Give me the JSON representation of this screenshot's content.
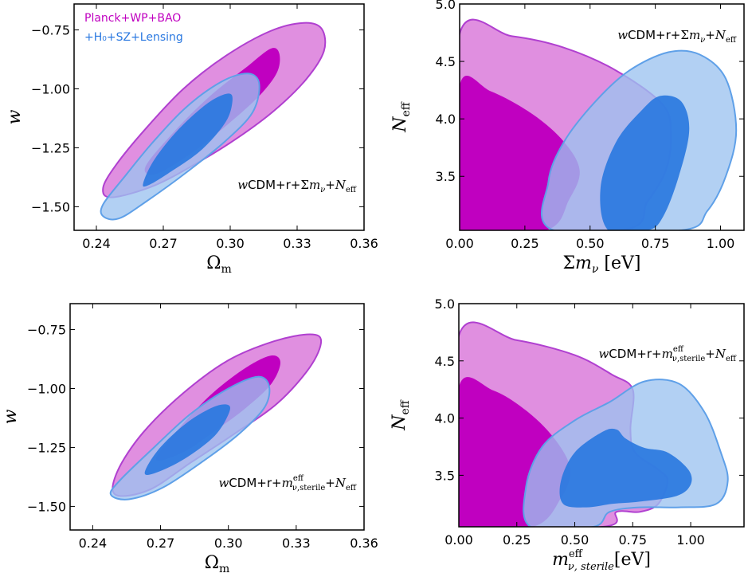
{
  "colors": {
    "planck_outer": "#e08fe0",
    "planck_inner": "#c000c0",
    "planck_edge": "#b040d0",
    "lens_outer": "#9cc3f0",
    "lens_inner": "#2a78e0",
    "lens_edge": "#5fa0e8"
  },
  "legend": {
    "planck": "Planck+WP+BAO",
    "lensing": "+H₀+SZ+Lensing"
  },
  "chart_data": [
    {
      "id": "top-left",
      "type": "contour",
      "xlabel": "Ωm",
      "ylabel": "w",
      "xlim": [
        0.23,
        0.36
      ],
      "ylim": [
        -1.6,
        -0.64
      ],
      "xticks": [
        "0.24",
        "0.27",
        "0.30",
        "0.33",
        "0.36"
      ],
      "yticks": [
        "−0.75",
        "−1.00",
        "−1.25",
        "−1.50"
      ],
      "annotation": "wCDM+r+Σmν+Neff",
      "series": [
        {
          "name": "Planck+WP+BAO",
          "level": "95%",
          "points": [
            [
              0.247,
              -1.46
            ],
            [
              0.243,
              -1.42
            ],
            [
              0.249,
              -1.32
            ],
            [
              0.262,
              -1.17
            ],
            [
              0.279,
              -1.0
            ],
            [
              0.298,
              -0.86
            ],
            [
              0.318,
              -0.755
            ],
            [
              0.333,
              -0.72
            ],
            [
              0.341,
              -0.745
            ],
            [
              0.342,
              -0.84
            ],
            [
              0.334,
              -0.96
            ],
            [
              0.32,
              -1.09
            ],
            [
              0.303,
              -1.21
            ],
            [
              0.286,
              -1.31
            ],
            [
              0.266,
              -1.41
            ]
          ]
        },
        {
          "name": "Planck+WP+BAO",
          "level": "68%",
          "points": [
            [
              0.262,
              -1.33
            ],
            [
              0.275,
              -1.18
            ],
            [
              0.291,
              -1.03
            ],
            [
              0.307,
              -0.91
            ],
            [
              0.318,
              -0.83
            ],
            [
              0.322,
              -0.85
            ],
            [
              0.321,
              -0.93
            ],
            [
              0.313,
              -1.03
            ],
            [
              0.299,
              -1.15
            ],
            [
              0.283,
              -1.27
            ],
            [
              0.267,
              -1.36
            ]
          ]
        },
        {
          "name": "+H₀+SZ+Lensing",
          "level": "95%",
          "points": [
            [
              0.243,
              -1.54
            ],
            [
              0.243,
              -1.49
            ],
            [
              0.252,
              -1.38
            ],
            [
              0.265,
              -1.23
            ],
            [
              0.28,
              -1.08
            ],
            [
              0.296,
              -0.97
            ],
            [
              0.308,
              -0.935
            ],
            [
              0.313,
              -0.98
            ],
            [
              0.31,
              -1.1
            ],
            [
              0.298,
              -1.22
            ],
            [
              0.281,
              -1.35
            ],
            [
              0.262,
              -1.48
            ],
            [
              0.25,
              -1.55
            ]
          ]
        },
        {
          "name": "+H₀+SZ+Lensing",
          "level": "68%",
          "points": [
            [
              0.261,
              -1.4
            ],
            [
              0.266,
              -1.3
            ],
            [
              0.277,
              -1.17
            ],
            [
              0.29,
              -1.06
            ],
            [
              0.299,
              -1.02
            ],
            [
              0.301,
              -1.05
            ],
            [
              0.298,
              -1.14
            ],
            [
              0.287,
              -1.26
            ],
            [
              0.272,
              -1.36
            ],
            [
              0.263,
              -1.41
            ]
          ]
        }
      ]
    },
    {
      "id": "top-right",
      "type": "contour",
      "xlabel": "Σmν [eV]",
      "ylabel": "Neff",
      "xlim": [
        0,
        1.09
      ],
      "ylim": [
        3.03,
        5.0
      ],
      "xticks": [
        "0.00",
        "0.25",
        "0.50",
        "0.75",
        "1.00"
      ],
      "yticks": [
        "3.5",
        "4.0",
        "4.5",
        "5.0"
      ],
      "annotation": "wCDM+r+Σmν+Neff",
      "series": [
        {
          "name": "Planck+WP+BAO",
          "level": "95%",
          "points": [
            [
              0.0,
              3.03
            ],
            [
              0.0,
              4.74
            ],
            [
              0.2,
              4.72
            ],
            [
              0.4,
              4.62
            ],
            [
              0.6,
              4.42
            ],
            [
              0.78,
              4.12
            ],
            [
              0.81,
              3.85
            ],
            [
              0.79,
              3.55
            ],
            [
              0.72,
              3.28
            ],
            [
              0.62,
              3.03
            ]
          ]
        },
        {
          "name": "Planck+WP+BAO",
          "level": "68%",
          "points": [
            [
              0.0,
              3.03
            ],
            [
              0.0,
              4.29
            ],
            [
              0.12,
              4.24
            ],
            [
              0.28,
              4.04
            ],
            [
              0.4,
              3.8
            ],
            [
              0.46,
              3.55
            ],
            [
              0.42,
              3.3
            ],
            [
              0.33,
              3.03
            ]
          ]
        },
        {
          "name": "+H₀+SZ+Lensing",
          "level": "95%",
          "points": [
            [
              0.36,
              3.03
            ],
            [
              0.34,
              3.45
            ],
            [
              0.4,
              3.8
            ],
            [
              0.52,
              4.15
            ],
            [
              0.65,
              4.42
            ],
            [
              0.8,
              4.58
            ],
            [
              0.92,
              4.56
            ],
            [
              1.02,
              4.35
            ],
            [
              1.06,
              3.9
            ],
            [
              1.02,
              3.5
            ],
            [
              0.95,
              3.2
            ],
            [
              0.85,
              3.03
            ]
          ]
        },
        {
          "name": "+H₀+SZ+Lensing",
          "level": "68%",
          "points": [
            [
              0.57,
              3.03
            ],
            [
              0.54,
              3.4
            ],
            [
              0.6,
              3.8
            ],
            [
              0.7,
              4.08
            ],
            [
              0.77,
              4.2
            ],
            [
              0.85,
              4.15
            ],
            [
              0.88,
              3.9
            ],
            [
              0.84,
              3.5
            ],
            [
              0.78,
              3.15
            ],
            [
              0.72,
              3.03
            ]
          ]
        }
      ]
    },
    {
      "id": "bottom-left",
      "type": "contour",
      "xlabel": "Ωm",
      "ylabel": "w",
      "xlim": [
        0.23,
        0.36
      ],
      "ylim": [
        -1.6,
        -0.64
      ],
      "xticks": [
        "0.24",
        "0.27",
        "0.30",
        "0.33",
        "0.36"
      ],
      "yticks": [
        "−0.75",
        "−1.00",
        "−1.25",
        "−1.50"
      ],
      "annotation": "wCDM+r+mν,sterileᵉᶠᶠ+Neff",
      "series": [
        {
          "name": "Planck+WP+BAO",
          "level": "95%",
          "points": [
            [
              0.25,
              -1.45
            ],
            [
              0.251,
              -1.35
            ],
            [
              0.262,
              -1.19
            ],
            [
              0.28,
              -1.02
            ],
            [
              0.3,
              -0.88
            ],
            [
              0.32,
              -0.8
            ],
            [
              0.336,
              -0.77
            ],
            [
              0.341,
              -0.8
            ],
            [
              0.336,
              -0.91
            ],
            [
              0.322,
              -1.06
            ],
            [
              0.303,
              -1.19
            ],
            [
              0.284,
              -1.31
            ],
            [
              0.265,
              -1.43
            ]
          ]
        },
        {
          "name": "Planck+WP+BAO",
          "level": "68%",
          "points": [
            [
              0.268,
              -1.3
            ],
            [
              0.279,
              -1.16
            ],
            [
              0.293,
              -1.02
            ],
            [
              0.308,
              -0.91
            ],
            [
              0.319,
              -0.86
            ],
            [
              0.323,
              -0.89
            ],
            [
              0.319,
              -0.98
            ],
            [
              0.308,
              -1.08
            ],
            [
              0.294,
              -1.18
            ],
            [
              0.28,
              -1.27
            ]
          ]
        },
        {
          "name": "+H₀+SZ+Lensing",
          "level": "95%",
          "points": [
            [
              0.248,
              -1.45
            ],
            [
              0.252,
              -1.39
            ],
            [
              0.266,
              -1.26
            ],
            [
              0.283,
              -1.11
            ],
            [
              0.3,
              -1.0
            ],
            [
              0.313,
              -0.95
            ],
            [
              0.318,
              -0.99
            ],
            [
              0.316,
              -1.08
            ],
            [
              0.305,
              -1.19
            ],
            [
              0.29,
              -1.3
            ],
            [
              0.271,
              -1.42
            ],
            [
              0.256,
              -1.47
            ]
          ]
        },
        {
          "name": "+H₀+SZ+Lensing",
          "level": "68%",
          "points": [
            [
              0.263,
              -1.36
            ],
            [
              0.269,
              -1.26
            ],
            [
              0.281,
              -1.15
            ],
            [
              0.293,
              -1.08
            ],
            [
              0.3,
              -1.07
            ],
            [
              0.3,
              -1.11
            ],
            [
              0.294,
              -1.2
            ],
            [
              0.282,
              -1.29
            ],
            [
              0.27,
              -1.35
            ]
          ]
        }
      ]
    },
    {
      "id": "bottom-right",
      "type": "contour",
      "xlabel": "mν, sterileᵉᶠᶠ[eV]",
      "ylabel": "Neff",
      "xlim": [
        0,
        1.23
      ],
      "ylim": [
        3.05,
        5.0
      ],
      "xticks": [
        "0.00",
        "0.25",
        "0.50",
        "0.75",
        "1.00"
      ],
      "yticks": [
        "3.5",
        "4.0",
        "4.5",
        "5.0"
      ],
      "annotation": "wCDM+r+mν,sterileᵉᶠᶠ+Neff",
      "series": [
        {
          "name": "Planck+WP+BAO",
          "level": "95%",
          "points": [
            [
              0.0,
              3.05
            ],
            [
              0.0,
              4.72
            ],
            [
              0.25,
              4.68
            ],
            [
              0.5,
              4.55
            ],
            [
              0.66,
              4.38
            ],
            [
              0.75,
              4.25
            ],
            [
              0.74,
              3.9
            ],
            [
              0.76,
              3.7
            ],
            [
              0.86,
              3.55
            ],
            [
              0.9,
              3.45
            ],
            [
              0.86,
              3.25
            ],
            [
              0.78,
              3.18
            ],
            [
              0.68,
              3.18
            ],
            [
              0.62,
              3.05
            ]
          ]
        },
        {
          "name": "Planck+WP+BAO",
          "level": "68%",
          "points": [
            [
              0.0,
              3.05
            ],
            [
              0.0,
              4.27
            ],
            [
              0.15,
              4.24
            ],
            [
              0.3,
              4.05
            ],
            [
              0.42,
              3.8
            ],
            [
              0.48,
              3.55
            ],
            [
              0.44,
              3.3
            ],
            [
              0.32,
              3.05
            ]
          ]
        },
        {
          "name": "+H₀+SZ+Lensing",
          "level": "95%",
          "points": [
            [
              0.31,
              3.05
            ],
            [
              0.29,
              3.4
            ],
            [
              0.36,
              3.75
            ],
            [
              0.5,
              3.98
            ],
            [
              0.65,
              4.14
            ],
            [
              0.8,
              4.32
            ],
            [
              0.95,
              4.3
            ],
            [
              1.06,
              4.05
            ],
            [
              1.13,
              3.7
            ],
            [
              1.16,
              3.45
            ],
            [
              1.11,
              3.25
            ],
            [
              0.95,
              3.22
            ],
            [
              0.78,
              3.22
            ],
            [
              0.65,
              3.18
            ],
            [
              0.58,
              3.05
            ]
          ]
        },
        {
          "name": "+H₀+SZ+Lensing",
          "level": "68%",
          "points": [
            [
              0.45,
              3.25
            ],
            [
              0.44,
              3.45
            ],
            [
              0.5,
              3.7
            ],
            [
              0.62,
              3.88
            ],
            [
              0.68,
              3.9
            ],
            [
              0.72,
              3.82
            ],
            [
              0.8,
              3.74
            ],
            [
              0.9,
              3.7
            ],
            [
              0.99,
              3.55
            ],
            [
              1.0,
              3.42
            ],
            [
              0.94,
              3.32
            ],
            [
              0.78,
              3.27
            ],
            [
              0.66,
              3.25
            ],
            [
              0.55,
              3.22
            ]
          ]
        }
      ]
    }
  ]
}
